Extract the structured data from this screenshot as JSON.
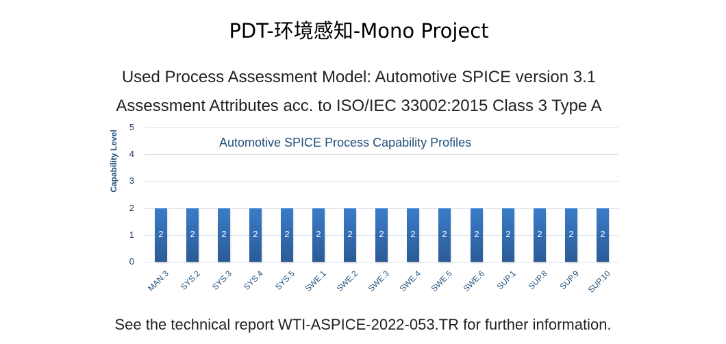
{
  "header": {
    "title": "PDT-环境感知-Mono Project",
    "subtitle_1": "Used Process Assessment Model: Automotive SPICE version 3.1",
    "subtitle_2": "Assessment Attributes acc. to ISO/IEC 33002:2015 Class 3 Type A"
  },
  "footer": {
    "text": "See the technical report WTI-ASPICE-2022-053.TR for further information."
  },
  "colors": {
    "bar_top": "#3a7cc9",
    "bar_bottom": "#2b5b96",
    "axis_text": "#1f4e79",
    "grid": "#d6e2ee"
  },
  "chart_data": {
    "type": "bar",
    "title": "Automotive SPICE Process Capability Profiles",
    "xlabel": "",
    "ylabel": "Capability Level",
    "ylim": [
      0,
      5
    ],
    "yticks": [
      "0",
      "1",
      "2",
      "3",
      "4",
      "5"
    ],
    "grid": true,
    "legend": "none",
    "categories": [
      "MAN.3",
      "SYS.2",
      "SYS.3",
      "SYS.4",
      "SYS.5",
      "SWE.1",
      "SWE.2",
      "SWE.3",
      "SWE.4",
      "SWE.5",
      "SWE.6",
      "SUP.1",
      "SUP.8",
      "SUP.9",
      "SUP.10"
    ],
    "values": [
      2,
      2,
      2,
      2,
      2,
      2,
      2,
      2,
      2,
      2,
      2,
      2,
      2,
      2,
      2
    ],
    "data_labels": [
      "2",
      "2",
      "2",
      "2",
      "2",
      "2",
      "2",
      "2",
      "2",
      "2",
      "2",
      "2",
      "2",
      "2",
      "2"
    ]
  }
}
